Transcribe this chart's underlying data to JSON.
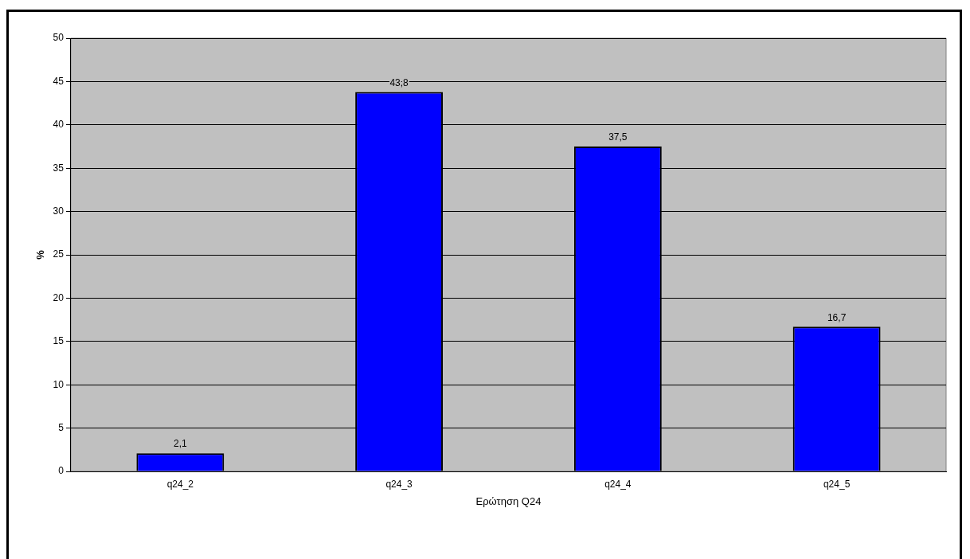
{
  "chart_data": {
    "type": "bar",
    "xlabel": "Ερώτηση Q24",
    "ylabel": "%",
    "categories": [
      "q24_2",
      "q24_3",
      "q24_4",
      "q24_5"
    ],
    "values": [
      2.1,
      43.8,
      37.5,
      16.7
    ],
    "color": "#0000ff",
    "value_labels": [
      "2,1",
      "43,8",
      "37,5",
      "16,7"
    ],
    "ylim": [
      0,
      50
    ],
    "yticks": [
      0,
      5,
      10,
      15,
      20,
      25,
      30,
      35,
      40,
      45,
      50
    ],
    "grid": "y",
    "legend": false
  }
}
